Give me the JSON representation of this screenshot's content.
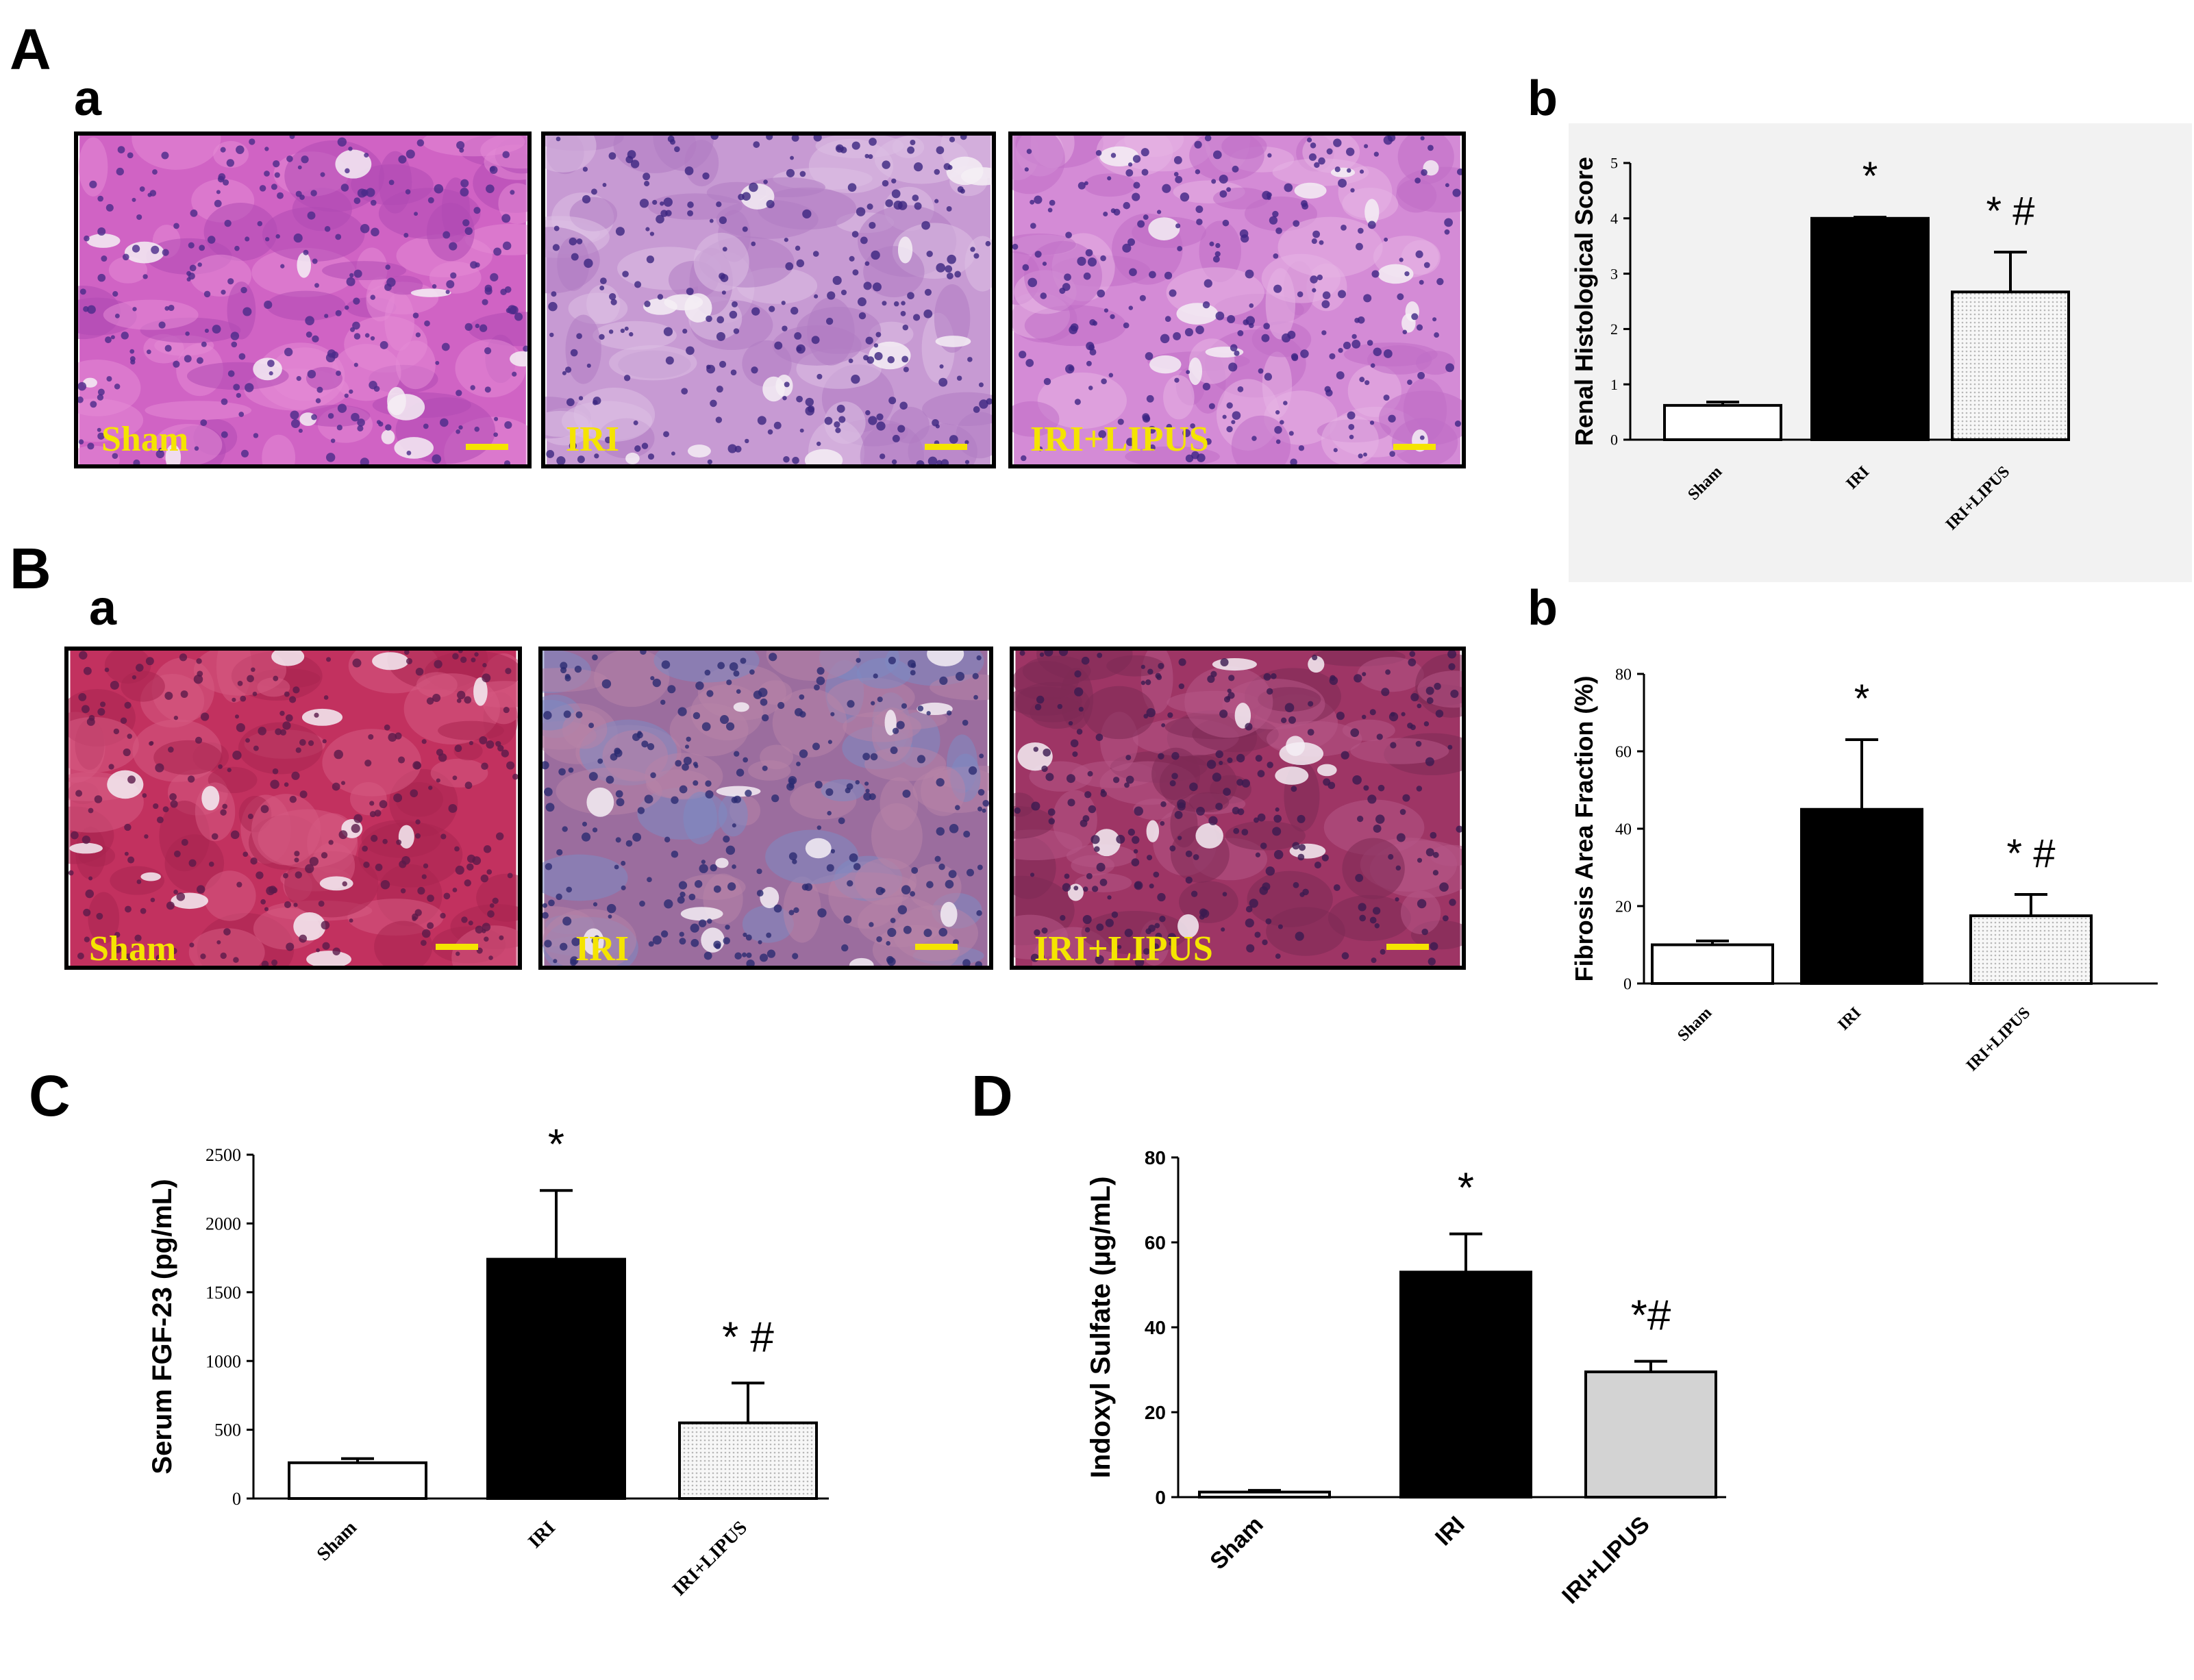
{
  "panels": {
    "A": "A",
    "A_a": "a",
    "A_b": "b",
    "B": "B",
    "B_a": "a",
    "B_b": "b",
    "C": "C",
    "D": "D"
  },
  "micrographs": {
    "A": [
      {
        "label": "Sham",
        "palette": [
          "#d063c4",
          "#b14bb5",
          "#e38ad6"
        ],
        "nuclei": "#4a2a8a"
      },
      {
        "label": "IRI",
        "palette": [
          "#c79ad3",
          "#b07cc3",
          "#dcc0e4"
        ],
        "nuclei": "#3b2580"
      },
      {
        "label": "IRI+LIPUS",
        "palette": [
          "#d48bd6",
          "#c06dc6",
          "#e6b3e3"
        ],
        "nuclei": "#3d2585"
      }
    ],
    "B": [
      {
        "label": "Sham",
        "palette": [
          "#c2315f",
          "#a92450",
          "#d65a82"
        ],
        "nuclei": "#5a1a4a"
      },
      {
        "label": "IRI",
        "palette": [
          "#9b6d9e",
          "#7d8bc3",
          "#b784a8"
        ],
        "nuclei": "#2a2a70"
      },
      {
        "label": "IRI+LIPUS",
        "palette": [
          "#9e3565",
          "#7d2a55",
          "#b55586"
        ],
        "nuclei": "#3a1a50"
      }
    ]
  },
  "chart_data": [
    {
      "id": "A-b",
      "type": "bar",
      "categories": [
        "Sham",
        "IRI",
        "IRI+LIPUS"
      ],
      "values": [
        0.62,
        4.0,
        2.67
      ],
      "errors": [
        0.06,
        0.02,
        0.72
      ],
      "annotations": [
        "",
        "*",
        "* #"
      ],
      "bar_fills": [
        "white",
        "black",
        "dotted"
      ],
      "ylabel": "Renal Histological Score",
      "ylim": [
        0,
        5
      ],
      "yticks": [
        "0",
        "1",
        "2",
        "3",
        "4",
        "5"
      ],
      "ytick_values": [
        0,
        1,
        2,
        3,
        4,
        5
      ],
      "background": "#f2f2f2"
    },
    {
      "id": "B-b",
      "type": "bar",
      "categories": [
        "Sham",
        "IRI",
        "IRI+LIPUS"
      ],
      "values": [
        10,
        45,
        17.5
      ],
      "errors": [
        1,
        18,
        5.5
      ],
      "annotations": [
        "",
        "*",
        "* #"
      ],
      "bar_fills": [
        "white",
        "black",
        "dotted"
      ],
      "ylabel": "Fibrosis Area Fraction (%)",
      "ylim": [
        0,
        80
      ],
      "yticks": [
        "0",
        "20",
        "40",
        "60",
        "80"
      ],
      "ytick_values": [
        0,
        20,
        40,
        60,
        80
      ],
      "background": "#ffffff"
    },
    {
      "id": "C",
      "type": "bar",
      "categories": [
        "Sham",
        "IRI",
        "IRI+LIPUS"
      ],
      "values": [
        260,
        1740,
        550
      ],
      "errors": [
        30,
        500,
        290
      ],
      "annotations": [
        "",
        "*",
        "* #"
      ],
      "bar_fills": [
        "white",
        "black",
        "dotted"
      ],
      "ylabel": "Serum FGF-23 (pg/mL)",
      "ylim": [
        0,
        2500
      ],
      "yticks": [
        "0",
        "500",
        "1000",
        "1500",
        "2000",
        "2500"
      ],
      "ytick_values": [
        0,
        500,
        1000,
        1500,
        2000,
        2500
      ],
      "background": "#ffffff"
    },
    {
      "id": "D",
      "type": "bar",
      "categories": [
        "Sham",
        "IRI",
        "IRI+LIPUS"
      ],
      "values": [
        1.2,
        53,
        29.5
      ],
      "errors": [
        0.4,
        9,
        2.5
      ],
      "annotations": [
        "",
        "*",
        "*#"
      ],
      "bar_fills": [
        "white",
        "black",
        "lightgrey"
      ],
      "ylabel": "Indoxyl Sulfate (µg/mL)",
      "ylim": [
        0,
        80
      ],
      "yticks": [
        "0",
        "20",
        "40",
        "60",
        "80"
      ],
      "ytick_values": [
        0,
        20,
        40,
        60,
        80
      ],
      "background": "#ffffff"
    }
  ]
}
